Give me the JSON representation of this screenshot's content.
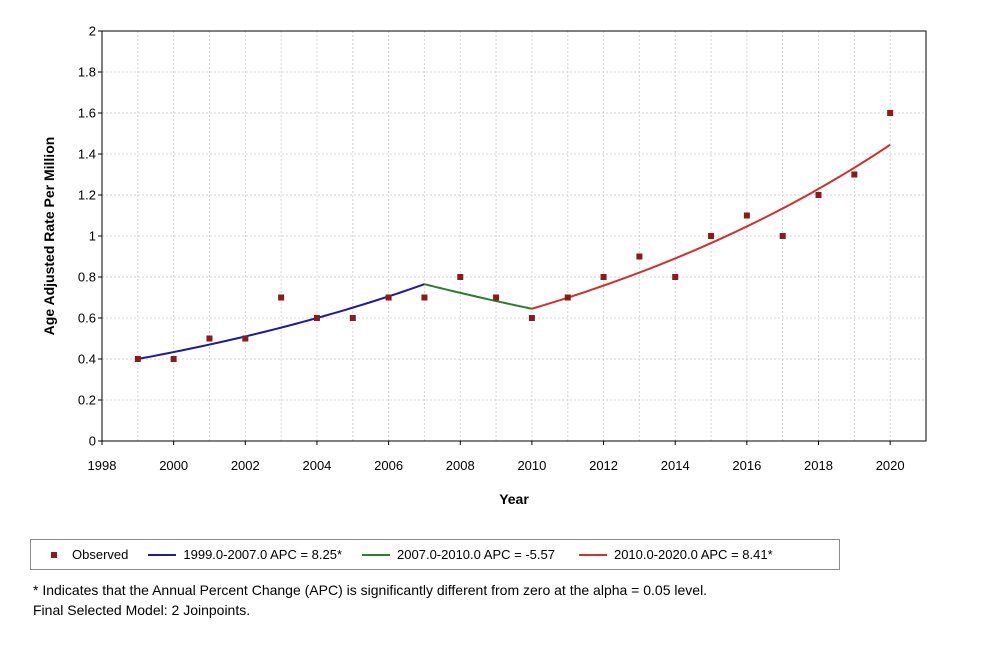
{
  "chart_data": {
    "type": "scatter",
    "xlabel": "Year",
    "ylabel": "Age Adjusted Rate Per Million",
    "xlim": [
      1998,
      2021
    ],
    "ylim": [
      0,
      2
    ],
    "xticks": [
      "1998",
      "2000",
      "2002",
      "2004",
      "2006",
      "2008",
      "2010",
      "2012",
      "2014",
      "2016",
      "2018",
      "2020"
    ],
    "yticks": [
      "0",
      "0.2",
      "0.4",
      "0.6",
      "0.8",
      "1",
      "1.2",
      "1.4",
      "1.6",
      "1.8",
      "2"
    ],
    "grid": true,
    "observed": {
      "name": "Observed",
      "color": "#8b1a1a",
      "x": [
        1999,
        2000,
        2001,
        2002,
        2003,
        2004,
        2005,
        2006,
        2007,
        2008,
        2009,
        2010,
        2011,
        2012,
        2013,
        2014,
        2015,
        2016,
        2017,
        2018,
        2019,
        2020
      ],
      "y": [
        0.4,
        0.4,
        0.5,
        0.5,
        0.7,
        0.6,
        0.6,
        0.7,
        0.7,
        0.8,
        0.7,
        0.6,
        0.7,
        0.8,
        0.9,
        0.8,
        1.0,
        1.1,
        1.0,
        1.2,
        1.3,
        1.6
      ]
    },
    "segments": [
      {
        "name": "1999.0-2007.0 APC  =  8.25*",
        "color": "#1a1aa6",
        "x_start": 1999,
        "x_end": 2007,
        "y_start": 0.4,
        "y_end": 0.765,
        "apc": 8.25
      },
      {
        "name": "2007.0-2010.0 APC  =  -5.57",
        "color": "#2e7d2e",
        "x_start": 2007,
        "x_end": 2010,
        "y_start": 0.765,
        "y_end": 0.645,
        "apc": -5.57
      },
      {
        "name": "2010.0-2020.0 APC  =  8.41*",
        "color": "#d32f2f",
        "x_start": 2010,
        "x_end": 2020,
        "y_start": 0.645,
        "y_end": 1.445,
        "apc": 8.41
      }
    ],
    "legend_position": "bottom"
  },
  "footnotes": {
    "line1": "* Indicates that the Annual Percent Change (APC) is significantly different from zero at the alpha = 0.05 level.",
    "line2": "Final Selected Model: 2 Joinpoints."
  }
}
